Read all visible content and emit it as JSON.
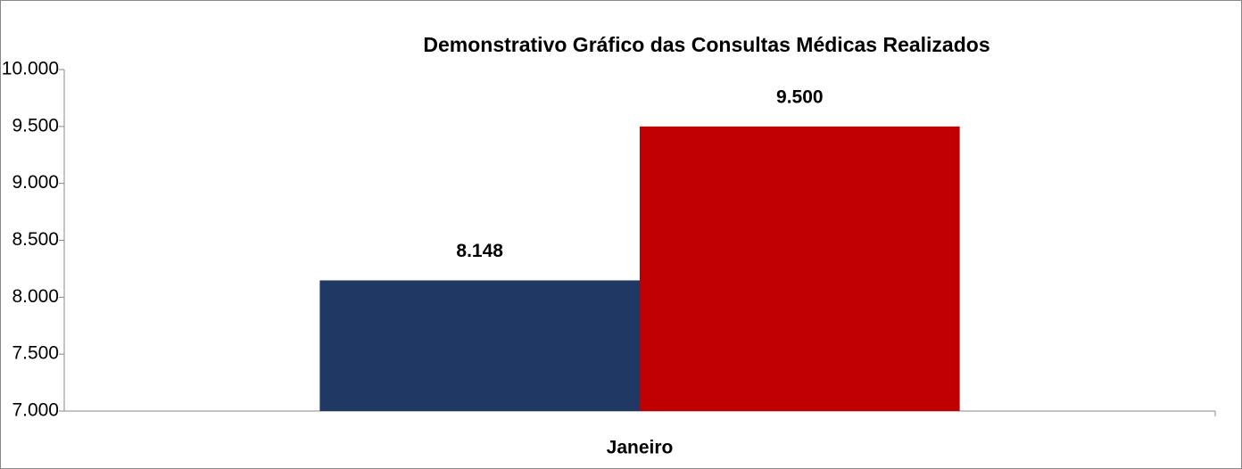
{
  "chart_data": {
    "type": "bar",
    "title": "Demonstrativo Gráfico das Consultas Médicas Realizados",
    "categories": [
      "Janeiro"
    ],
    "series": [
      {
        "color": "#203864",
        "values": [
          8148
        ],
        "value_labels": [
          "8.148"
        ]
      },
      {
        "color": "#c00000",
        "values": [
          9500
        ],
        "value_labels": [
          "9.500"
        ]
      }
    ],
    "ylim": [
      7000,
      10000
    ],
    "yticks": [
      {
        "value": 7000,
        "label": "7.000"
      },
      {
        "value": 7500,
        "label": "7.500"
      },
      {
        "value": 8000,
        "label": "8.000"
      },
      {
        "value": 8500,
        "label": "8.500"
      },
      {
        "value": 9000,
        "label": "9.000"
      },
      {
        "value": 9500,
        "label": "9.500"
      },
      {
        "value": 10000,
        "label": "10.000"
      }
    ],
    "grid": false
  }
}
